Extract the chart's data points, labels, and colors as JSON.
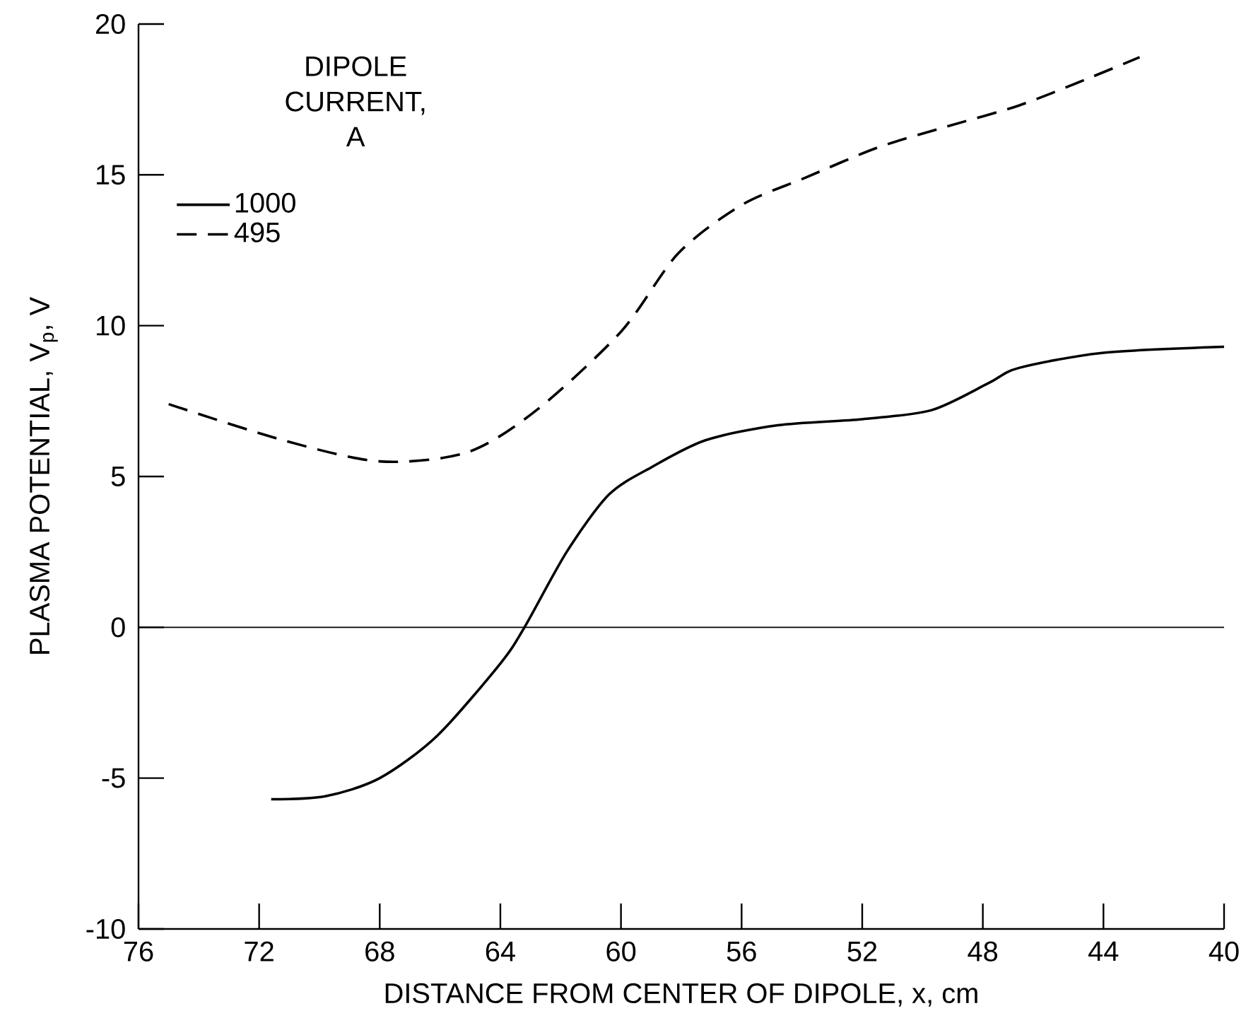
{
  "chart_data": {
    "type": "line",
    "xlabel": "DISTANCE FROM CENTER OF DIPOLE,  x,  cm",
    "ylabel": "PLASMA POTENTIAL,  V$_{p}$,  V",
    "legend_title": "DIPOLE CURRENT, A",
    "xlim": [
      76,
      40
    ],
    "xticks": [
      76,
      72,
      68,
      64,
      60,
      56,
      52,
      48,
      44,
      40
    ],
    "ylim": [
      -10,
      20
    ],
    "yticks": [
      -10,
      -5,
      0,
      5,
      10,
      15,
      20
    ],
    "grid": false,
    "legend": "top left",
    "marker": "none",
    "ref_lines": [
      {
        "axis": "y",
        "value": 0,
        "color": "#000000",
        "line_style": "solid"
      }
    ],
    "series": [
      {
        "name": "1000",
        "color": "#000000",
        "line_style": "solid",
        "x": [
          71.6,
          69.8,
          68,
          66.1,
          64,
          63.2,
          61.8,
          60.4,
          59,
          57.2,
          54.8,
          52,
          49.7,
          47.8,
          46.8,
          44,
          40
        ],
        "values": [
          -5.7,
          -5.6,
          -5.0,
          -3.6,
          -1.2,
          0,
          2.5,
          4.4,
          5.3,
          6.2,
          6.7,
          6.9,
          7.2,
          8.1,
          8.6,
          9.1,
          9.3
        ]
      },
      {
        "name": "495",
        "color": "#000000",
        "line_style": "dashed",
        "x": [
          75,
          71.2,
          68,
          65.1,
          62.8,
          60,
          58.1,
          56,
          53.9,
          51.5,
          49.2,
          46.8,
          44.5,
          42.8
        ],
        "values": [
          7.4,
          6.2,
          5.5,
          5.8,
          7.2,
          9.8,
          12.4,
          14.0,
          14.9,
          15.9,
          16.6,
          17.3,
          18.2,
          18.9
        ]
      }
    ]
  }
}
